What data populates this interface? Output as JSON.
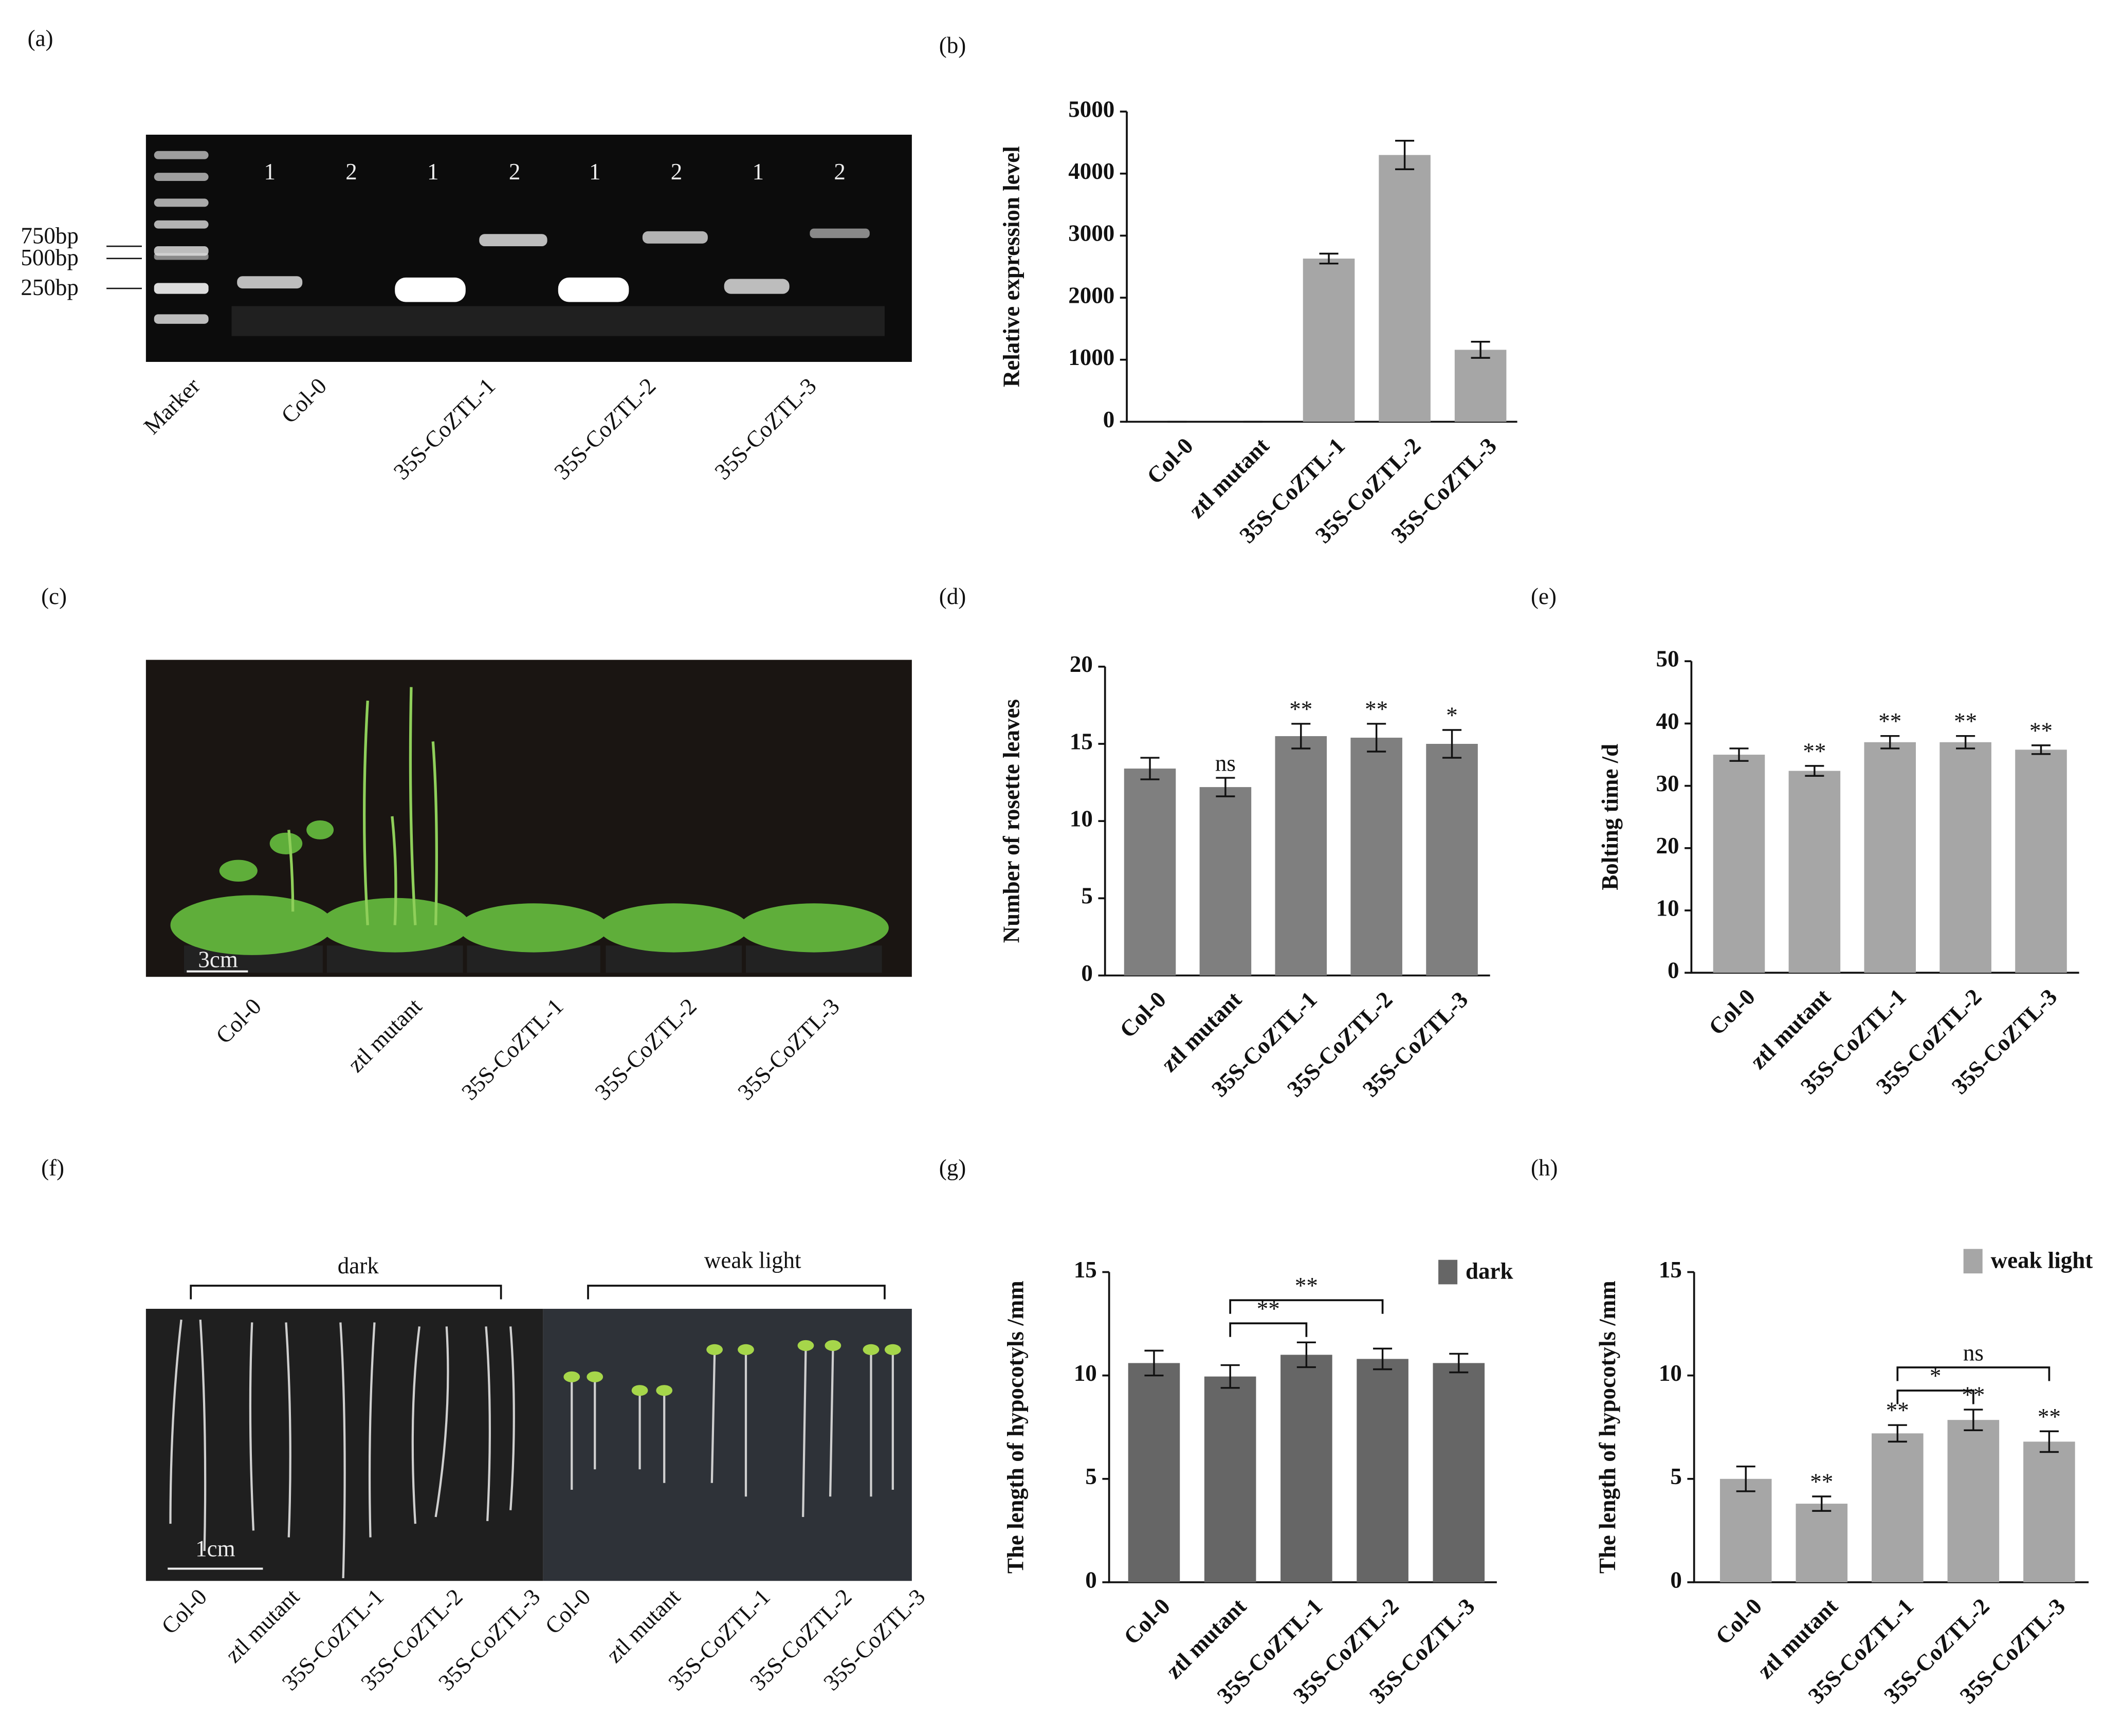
{
  "chart_data": [
    {
      "type": "bar",
      "panel": "(b)",
      "y_label": "Relative expression level",
      "categories": [
        "Col-0",
        "ztl mutant",
        "35S-CoZTL-1",
        "35S-CoZTL-2",
        "35S-CoZTL-3"
      ],
      "series": [
        {
          "color": "#a6a6a6",
          "values": [
            0,
            0,
            2630,
            4300,
            1160
          ],
          "errors": [
            0,
            0,
            80,
            230,
            130
          ]
        }
      ],
      "ylim": [
        0,
        5000
      ],
      "yticks": [
        0,
        1000,
        2000,
        3000,
        4000,
        5000
      ]
    },
    {
      "type": "bar",
      "panel": "(d)",
      "y_label": "Number of rosette leaves",
      "categories": [
        "Col-0",
        "ztl mutant",
        "35S-CoZTL-1",
        "35S-CoZTL-2",
        "35S-CoZTL-3"
      ],
      "series": [
        {
          "color": "#7f7f7f",
          "values": [
            13.4,
            12.2,
            15.5,
            15.4,
            15.0
          ],
          "errors": [
            0.7,
            0.6,
            0.8,
            0.9,
            0.9
          ],
          "annotations": [
            null,
            "ns",
            "**",
            "**",
            "*"
          ]
        }
      ],
      "ylim": [
        0,
        20
      ],
      "yticks": [
        0,
        5,
        10,
        15,
        20
      ]
    },
    {
      "type": "bar",
      "panel": "(e)",
      "y_label": "Bolting time /d",
      "categories": [
        "Col-0",
        "ztl mutant",
        "35S-CoZTL-1",
        "35S-CoZTL-2",
        "35S-CoZTL-3"
      ],
      "series": [
        {
          "color": "#a6a6a6",
          "values": [
            35.0,
            32.4,
            37.0,
            37.0,
            35.8
          ],
          "errors": [
            1.0,
            0.8,
            1.0,
            1.0,
            0.7
          ],
          "annotations": [
            null,
            "**",
            "**",
            "**",
            "**"
          ]
        }
      ],
      "ylim": [
        0,
        50
      ],
      "yticks": [
        0,
        10,
        20,
        30,
        40,
        50
      ]
    },
    {
      "type": "bar",
      "panel": "(g)",
      "y_label": "The length of hypocotyls /mm",
      "categories": [
        "Col-0",
        "ztl mutant",
        "35S-CoZTL-1",
        "35S-CoZTL-2",
        "35S-CoZTL-3"
      ],
      "series": [
        {
          "name": "dark",
          "color": "#666666",
          "values": [
            10.6,
            9.95,
            11.0,
            10.8,
            10.6
          ],
          "errors": [
            0.6,
            0.55,
            0.6,
            0.5,
            0.45
          ]
        }
      ],
      "comparisons": [
        {
          "from": 1,
          "to": 2,
          "label": "**"
        },
        {
          "from": 1,
          "to": 3,
          "label": "**"
        }
      ],
      "ylim": [
        0,
        15
      ],
      "yticks": [
        0,
        5,
        10,
        15
      ],
      "legend": "top-right"
    },
    {
      "type": "bar",
      "panel": "(h)",
      "y_label": "The length of hypocotyls /mm",
      "categories": [
        "Col-0",
        "ztl mutant",
        "35S-CoZTL-1",
        "35S-CoZTL-2",
        "35S-CoZTL-3"
      ],
      "series": [
        {
          "name": "weak light",
          "color": "#a6a6a6",
          "values": [
            5.0,
            3.8,
            7.2,
            7.85,
            6.8
          ],
          "errors": [
            0.6,
            0.35,
            0.4,
            0.5,
            0.5
          ],
          "annotations": [
            null,
            "**",
            "**",
            "**",
            "**"
          ]
        }
      ],
      "comparisons": [
        {
          "from": 2,
          "to": 3,
          "label": "*"
        },
        {
          "from": 2,
          "to": 4,
          "label": "ns"
        }
      ],
      "ylim": [
        0,
        15
      ],
      "yticks": [
        0,
        5,
        10,
        15
      ],
      "legend": "top-right"
    }
  ],
  "photos": [
    {
      "panel": "(a)",
      "lane_numbers": [
        "1",
        "2",
        "1",
        "2",
        "1",
        "2",
        "1",
        "2"
      ],
      "size_markers": [
        "750bp",
        "500bp",
        "250bp"
      ],
      "lanes": [
        "Marker",
        "Col-0",
        "35S-CoZTL-1",
        "35S-CoZTL-2",
        "35S-CoZTL-3"
      ]
    },
    {
      "panel": "(c)",
      "scale_bar": "3cm",
      "lanes": [
        "Col-0",
        "ztl mutant",
        "35S-CoZTL-1",
        "35S-CoZTL-2",
        "35S-CoZTL-3"
      ]
    },
    {
      "panel": "(f)",
      "groups": [
        "dark",
        "weak light"
      ],
      "scale_bar": "1cm",
      "lanes": [
        "Col-0",
        "ztl mutant",
        "35S-CoZTL-1",
        "35S-CoZTL-2",
        "35S-CoZTL-3",
        "Col-0",
        "ztl mutant",
        "35S-CoZTL-1",
        "35S-CoZTL-2",
        "35S-CoZTL-3"
      ]
    }
  ]
}
